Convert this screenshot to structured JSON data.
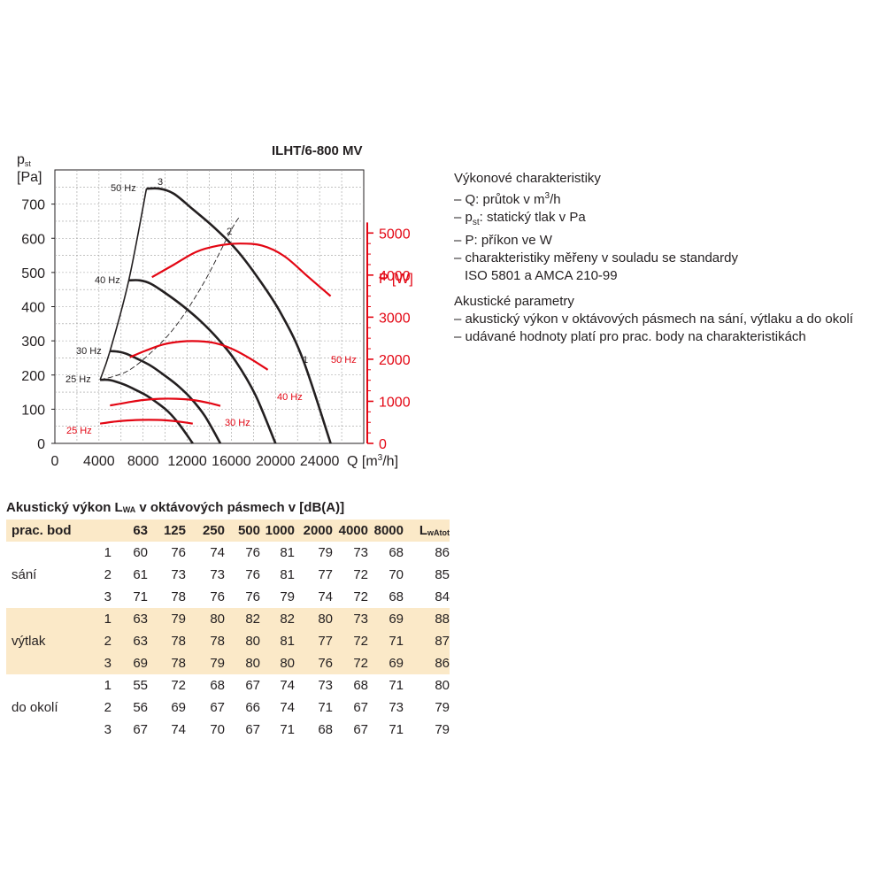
{
  "chart_data": {
    "type": "line",
    "title": "ILHT/6-800 MV",
    "xlabel": "Q [m³/h]",
    "ylabel_left": "pst [Pa]",
    "ylabel_right": "P [W]",
    "xlim": [
      0,
      28000
    ],
    "ylim_left": [
      0,
      800
    ],
    "ylim_right": [
      0,
      6500
    ],
    "x_ticks": [
      "0",
      "4000",
      "8000",
      "12000",
      "16000",
      "20000",
      "24000"
    ],
    "y_ticks_left": [
      "0",
      "100",
      "200",
      "300",
      "400",
      "500",
      "600",
      "700"
    ],
    "y_ticks_right": [
      "0",
      "1000",
      "2000",
      "3000",
      "4000",
      "5000"
    ],
    "grid": true,
    "pressure_series": [
      {
        "name": "50 Hz",
        "x": [
          8300,
          9500,
          10800,
          12500,
          14500,
          16500,
          18500,
          20500,
          22500,
          25000
        ],
        "y": [
          745,
          745,
          730,
          685,
          630,
          565,
          480,
          380,
          245,
          0
        ]
      },
      {
        "name": "40 Hz",
        "x": [
          6700,
          7700,
          8700,
          10000,
          11600,
          13200,
          14800,
          16400,
          18200,
          20000
        ],
        "y": [
          477,
          477,
          467,
          440,
          402,
          358,
          305,
          240,
          140,
          0
        ]
      },
      {
        "name": "30 Hz",
        "x": [
          5000,
          5800,
          6500,
          7500,
          8700,
          9900,
          11100,
          12300,
          13600,
          15000
        ],
        "y": [
          270,
          268,
          262,
          247,
          227,
          200,
          170,
          133,
          80,
          0
        ]
      },
      {
        "name": "25 Hz",
        "x": [
          4100,
          4800,
          5400,
          6300,
          7300,
          8300,
          9300,
          10300,
          11300,
          12500
        ],
        "y": [
          186,
          186,
          182,
          172,
          157,
          140,
          118,
          92,
          55,
          0
        ]
      }
    ],
    "system_curve": {
      "x": [
        4100,
        6500,
        8700,
        11000,
        13500,
        16000,
        16800
      ],
      "y": [
        186,
        210,
        265,
        345,
        470,
        625,
        665
      ]
    },
    "power_series": [
      {
        "name": "50 Hz",
        "x": [
          8800,
          10800,
          12800,
          14800,
          16800,
          18800,
          20800,
          23000,
          25000
        ],
        "y": [
          3950,
          4250,
          4550,
          4700,
          4750,
          4700,
          4450,
          3950,
          3500
        ]
      },
      {
        "name": "40 Hz",
        "x": [
          6800,
          8200,
          9800,
          11400,
          13000,
          14600,
          16200,
          17800,
          19300
        ],
        "y": [
          2050,
          2200,
          2350,
          2420,
          2430,
          2380,
          2230,
          2000,
          1750
        ]
      },
      {
        "name": "30 Hz",
        "x": [
          5000,
          6500,
          8000,
          9500,
          11000,
          12500,
          14000,
          15000
        ],
        "y": [
          900,
          970,
          1030,
          1060,
          1060,
          1030,
          960,
          890
        ]
      },
      {
        "name": "25 Hz",
        "x": [
          4100,
          5500,
          7000,
          8500,
          10000,
          11500,
          12500
        ],
        "y": [
          470,
          520,
          550,
          560,
          550,
          510,
          470
        ]
      }
    ],
    "curve_labels": {
      "p50": "50 Hz",
      "p40": "40 Hz",
      "p30": "30 Hz",
      "p25": "25 Hz",
      "w50": "50 Hz",
      "w40": "40 Hz",
      "w30": "30 Hz",
      "w25": "25 Hz",
      "op1": "1",
      "op2": "2",
      "op3": "3"
    },
    "colors": {
      "pressure": "#231f20",
      "power": "#e30613",
      "grid": "#9d9d9c",
      "table_highlight": "#fbe9c8"
    }
  },
  "info": {
    "perf_title": "Výkonové charakteristiky",
    "perf_q_pre": "– Q: průtok v m",
    "perf_q_sup": "3",
    "perf_q_post": "/h",
    "perf_p_pre": "– p",
    "perf_p_sub": "st",
    "perf_p_post": ": statický tlak v Pa",
    "perf_power": "– P: příkon ve W",
    "perf_std_1": "– charakteristiky měřeny v souladu se standardy",
    "perf_std_2": "ISO 5801 a AMCA 210-99",
    "ac_title": "Akustické parametry",
    "ac_line_1": "– akustický výkon v oktávových pásmech na sání, výtlaku a do okolí",
    "ac_line_2": "– udávané hodnoty platí pro prac. body na charakteristikách"
  },
  "table": {
    "title_pre": "Akustický výkon L",
    "title_sub": "WA",
    "title_post": " v oktávových pásmech v [dB(A)]",
    "header_first": "prac. bod",
    "header_freqs": [
      "63",
      "125",
      "250",
      "500",
      "1000",
      "2000",
      "4000",
      "8000"
    ],
    "header_last_main": "L",
    "header_last_sub": "wAtot",
    "groups": [
      {
        "name": "sání",
        "highlight": false,
        "rows": [
          {
            "pt": "1",
            "vals": [
              "60",
              "76",
              "74",
              "76",
              "81",
              "79",
              "73",
              "68",
              "86"
            ]
          },
          {
            "pt": "2",
            "vals": [
              "61",
              "73",
              "73",
              "76",
              "81",
              "77",
              "72",
              "70",
              "85"
            ]
          },
          {
            "pt": "3",
            "vals": [
              "71",
              "78",
              "76",
              "76",
              "79",
              "74",
              "72",
              "68",
              "84"
            ]
          }
        ]
      },
      {
        "name": "výtlak",
        "highlight": true,
        "rows": [
          {
            "pt": "1",
            "vals": [
              "63",
              "79",
              "80",
              "82",
              "82",
              "80",
              "73",
              "69",
              "88"
            ]
          },
          {
            "pt": "2",
            "vals": [
              "63",
              "78",
              "78",
              "80",
              "81",
              "77",
              "72",
              "71",
              "87"
            ]
          },
          {
            "pt": "3",
            "vals": [
              "69",
              "78",
              "79",
              "80",
              "80",
              "76",
              "72",
              "69",
              "86"
            ]
          }
        ]
      },
      {
        "name": "do okolí",
        "highlight": false,
        "rows": [
          {
            "pt": "1",
            "vals": [
              "55",
              "72",
              "68",
              "67",
              "74",
              "73",
              "68",
              "71",
              "80"
            ]
          },
          {
            "pt": "2",
            "vals": [
              "56",
              "69",
              "67",
              "66",
              "74",
              "71",
              "67",
              "73",
              "79"
            ]
          },
          {
            "pt": "3",
            "vals": [
              "67",
              "74",
              "70",
              "67",
              "71",
              "68",
              "67",
              "71",
              "79"
            ]
          }
        ]
      }
    ]
  }
}
